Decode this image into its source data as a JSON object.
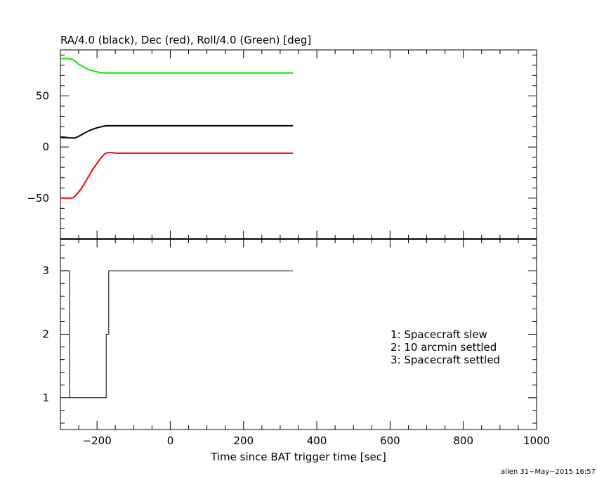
{
  "chart_data": [
    {
      "type": "line",
      "title": "RA/4.0 (black), Dec (red), Roll/4.0 (Green) [deg]",
      "xlim": [
        -300,
        1000
      ],
      "ylim": [
        -90,
        95
      ],
      "yticks": [
        -50,
        0,
        50
      ],
      "ytick_labels": [
        "−50",
        "0",
        "50"
      ],
      "grid": false,
      "series": [
        {
          "color": "#000000",
          "x": [
            -300,
            -290,
            -285,
            -280,
            -270,
            -260,
            -250,
            -240,
            -230,
            -220,
            -210,
            -200,
            -190,
            -180,
            -170,
            -160,
            -150,
            -100,
            0,
            100,
            200,
            300,
            335
          ],
          "y": [
            9.5,
            9.0,
            9.5,
            9.0,
            8.8,
            8.8,
            10.5,
            12.5,
            14.5,
            16.2,
            17.6,
            18.8,
            19.7,
            20.5,
            20.8,
            20.8,
            20.8,
            20.8,
            20.8,
            20.8,
            20.8,
            20.8,
            20.8
          ]
        },
        {
          "color": "#ff0000",
          "x": [
            -300,
            -280,
            -270,
            -265,
            -260,
            -250,
            -240,
            -230,
            -220,
            -210,
            -200,
            -190,
            -180,
            -175,
            -170,
            -165,
            -160,
            -150,
            -100,
            0,
            100,
            200,
            300,
            335
          ],
          "y": [
            -50,
            -50,
            -50,
            -49.5,
            -48,
            -44,
            -39,
            -33,
            -27,
            -21,
            -16,
            -11,
            -7,
            -6,
            -5.5,
            -5.5,
            -5.5,
            -6,
            -6,
            -6,
            -6,
            -6,
            -6,
            -6
          ]
        },
        {
          "color": "#00ee00",
          "x": [
            -300,
            -280,
            -270,
            -260,
            -250,
            -240,
            -230,
            -220,
            -210,
            -200,
            -190,
            -180,
            -170,
            -150,
            -100,
            0,
            100,
            200,
            300,
            335
          ],
          "y": [
            86.5,
            86.5,
            86.0,
            84.0,
            81.0,
            79.0,
            77.0,
            75.5,
            74.5,
            73.5,
            72.8,
            72.5,
            72.5,
            72.5,
            72.5,
            72.5,
            72.5,
            72.5,
            72.5,
            72.5
          ]
        }
      ]
    },
    {
      "type": "line",
      "xlabel": "Time since BAT trigger time [sec]",
      "xlim": [
        -300,
        1000
      ],
      "ylim": [
        0.5,
        3.5
      ],
      "xticks": [
        -200,
        0,
        200,
        400,
        600,
        800,
        1000
      ],
      "xtick_labels": [
        "−200",
        "0",
        "200",
        "400",
        "600",
        "800",
        "1000"
      ],
      "yticks": [
        1,
        2,
        3
      ],
      "ytick_labels": [
        "1",
        "2",
        "3"
      ],
      "grid": false,
      "series": [
        {
          "color": "#000000",
          "step": true,
          "x": [
            -300,
            -275,
            -275,
            -175,
            -175,
            -168,
            -168,
            335
          ],
          "y": [
            3,
            3,
            1,
            1,
            2,
            2,
            3,
            3
          ]
        }
      ],
      "annotations": [
        "1: Spacecraft slew",
        "2: 10 arcmin settled",
        "3: Spacecraft settled"
      ]
    }
  ],
  "stamp": "allen 31−May−2015 16:57"
}
